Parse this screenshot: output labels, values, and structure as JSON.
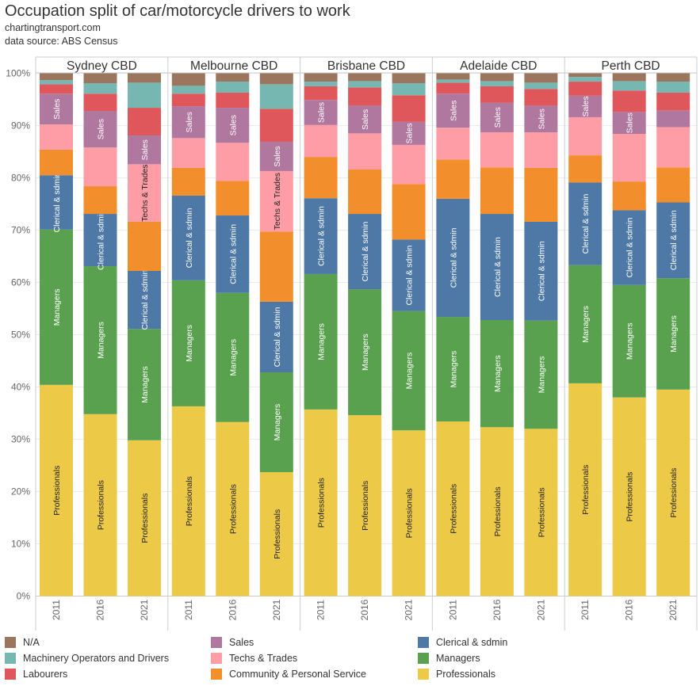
{
  "title": "Occupation split of car/motorcycle drivers to work",
  "subtitle1": "chartingtransport.com",
  "subtitle2": "data source: ABS Census",
  "chart_data": {
    "type": "bar",
    "stacked": true,
    "ylim": [
      0,
      100
    ],
    "yticks": [
      "0%",
      "10%",
      "20%",
      "30%",
      "40%",
      "50%",
      "60%",
      "70%",
      "80%",
      "90%",
      "100%"
    ],
    "grid": true,
    "legend_placement": "bottom",
    "panels": [
      "Sydney CBD",
      "Melbourne CBD",
      "Brisbane CBD",
      "Adelaide CBD",
      "Perth CBD"
    ],
    "categories": [
      "2011",
      "2016",
      "2021"
    ],
    "series": [
      {
        "name": "Professionals",
        "color": "#edc948",
        "label_color": "#222",
        "values": [
          [
            40.4,
            34.8,
            29.8
          ],
          [
            36.3,
            33.3,
            23.7
          ],
          [
            35.7,
            34.6,
            31.7
          ],
          [
            33.4,
            32.3,
            32.0
          ],
          [
            40.7,
            38.0,
            39.5
          ]
        ]
      },
      {
        "name": "Managers",
        "color": "#59a14f",
        "label_color": "#fff",
        "values": [
          [
            29.7,
            28.3,
            21.3
          ],
          [
            24.1,
            24.7,
            19.1
          ],
          [
            25.9,
            24.1,
            22.8
          ],
          [
            20.0,
            20.5,
            20.7
          ],
          [
            22.6,
            21.5,
            21.3
          ]
        ]
      },
      {
        "name": "Clerical & sdmin",
        "color": "#4e79a7",
        "label_color": "#fff",
        "values": [
          [
            10.4,
            10.0,
            11.1
          ],
          [
            16.2,
            14.8,
            13.5
          ],
          [
            14.5,
            14.4,
            13.7
          ],
          [
            22.6,
            20.3,
            18.9
          ],
          [
            15.8,
            14.3,
            14.5
          ]
        ]
      },
      {
        "name": "Community & Personal Service",
        "color": "#f28e2b",
        "label_color": "#222",
        "values": [
          [
            4.9,
            5.3,
            9.4
          ],
          [
            5.3,
            6.6,
            13.4
          ],
          [
            7.9,
            8.5,
            10.6
          ],
          [
            7.5,
            8.9,
            10.3
          ],
          [
            5.2,
            5.5,
            6.7
          ]
        ]
      },
      {
        "name": "Techs & Trades",
        "color": "#ff9da7",
        "label_color": "#222",
        "values": [
          [
            4.8,
            7.4,
            11.0
          ],
          [
            5.7,
            7.3,
            11.6
          ],
          [
            6.1,
            6.9,
            7.5
          ],
          [
            6.1,
            6.7,
            6.8
          ],
          [
            7.3,
            9.1,
            7.7
          ]
        ]
      },
      {
        "name": "Sales",
        "color": "#b0779f",
        "label_color": "#fff",
        "values": [
          [
            5.9,
            7.0,
            5.5
          ],
          [
            6.1,
            6.7,
            5.6
          ],
          [
            4.8,
            5.3,
            4.4
          ],
          [
            6.5,
            5.7,
            5.1
          ],
          [
            4.1,
            4.2,
            3.2
          ]
        ]
      },
      {
        "name": "Labourers",
        "color": "#e0575b",
        "label_color": "#fff",
        "values": [
          [
            1.8,
            3.3,
            5.3
          ],
          [
            2.4,
            2.9,
            6.3
          ],
          [
            2.6,
            3.5,
            5.1
          ],
          [
            2.1,
            3.1,
            3.2
          ],
          [
            2.7,
            4.1,
            3.4
          ]
        ]
      },
      {
        "name": "Machinery Operators and Drivers",
        "color": "#76b7b2",
        "label_color": "#fff",
        "values": [
          [
            0.8,
            2.0,
            4.8
          ],
          [
            1.5,
            2.1,
            4.7
          ],
          [
            0.9,
            1.2,
            2.3
          ],
          [
            0.6,
            1.0,
            1.2
          ],
          [
            0.9,
            1.8,
            2.1
          ]
        ]
      },
      {
        "name": "N/A",
        "color": "#9c755f",
        "label_color": "#fff",
        "values": [
          [
            1.3,
            1.9,
            1.8
          ],
          [
            2.4,
            1.6,
            2.1
          ],
          [
            1.6,
            1.5,
            1.9
          ],
          [
            1.2,
            1.5,
            1.8
          ],
          [
            0.7,
            1.5,
            1.6
          ]
        ]
      }
    ],
    "legend": [
      [
        "N/A",
        "Machinery Operators and Drivers",
        "Labourers"
      ],
      [
        "Sales",
        "Techs & Trades",
        "Community & Personal Service"
      ],
      [
        "Clerical & sdmin",
        "Managers",
        "Professionals"
      ]
    ]
  }
}
